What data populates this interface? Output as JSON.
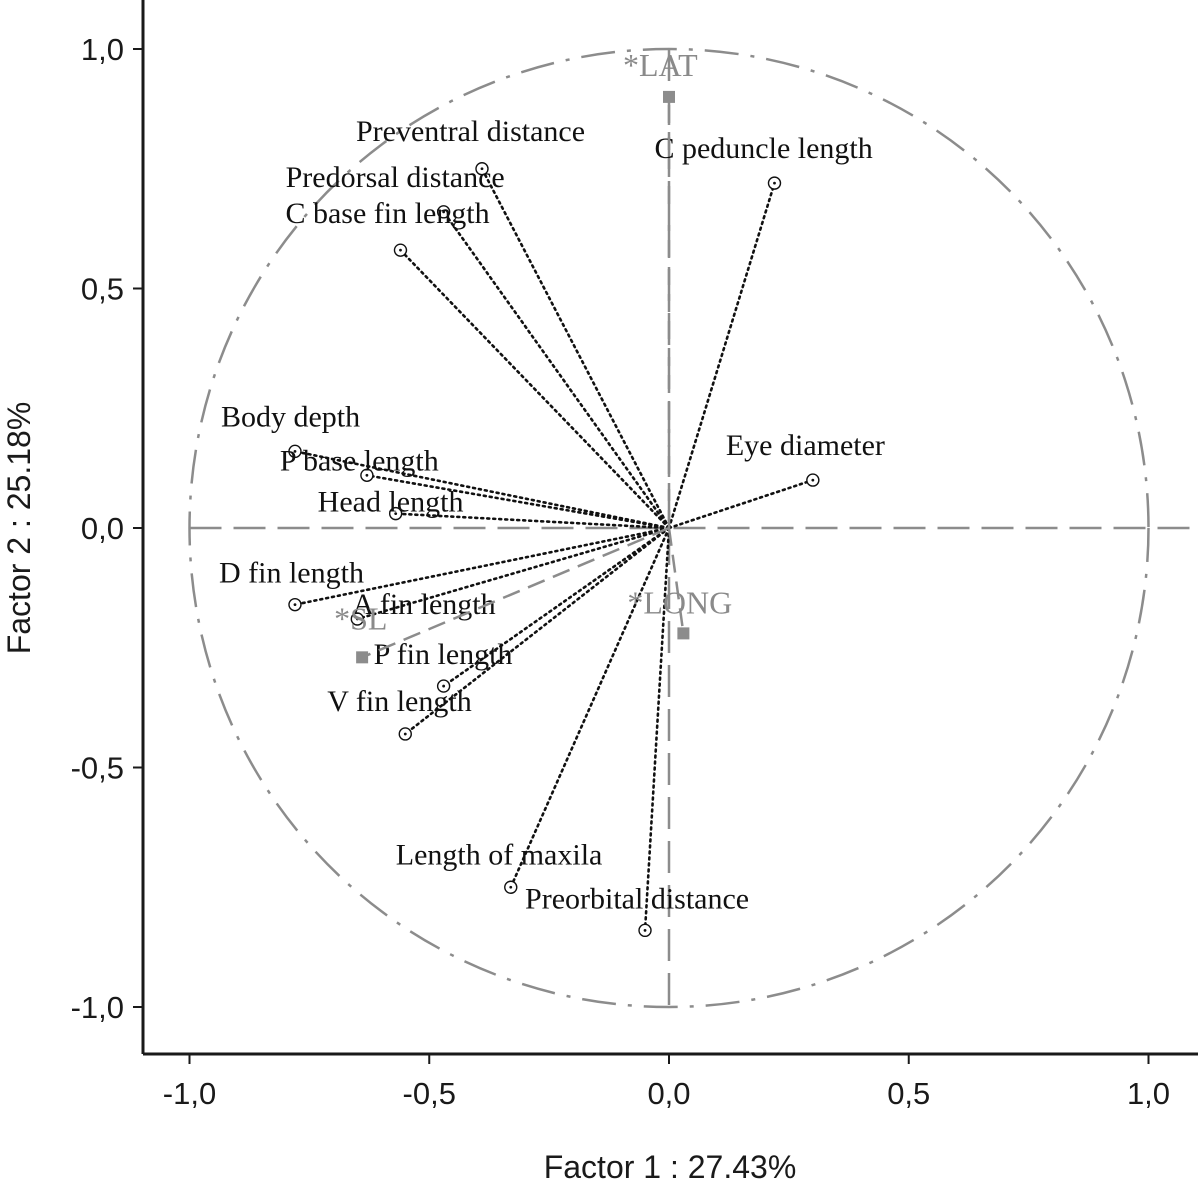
{
  "chart_data": {
    "type": "scatter",
    "subtype": "pca-correlation-circle",
    "xlabel": "Factor 1 : 27.43%",
    "ylabel": "Factor 2 : 25.18%",
    "xlim": [
      -1.1,
      1.1
    ],
    "ylim": [
      -1.1,
      1.1
    ],
    "xticks": [
      {
        "value": -1.0,
        "label": "-1,0"
      },
      {
        "value": -0.5,
        "label": "-0,5"
      },
      {
        "value": 0.0,
        "label": "0,0"
      },
      {
        "value": 0.5,
        "label": "0,5"
      },
      {
        "value": 1.0,
        "label": "1,0"
      }
    ],
    "yticks": [
      {
        "value": 1.0,
        "label": "1,0"
      },
      {
        "value": 0.5,
        "label": "0,5"
      },
      {
        "value": 0.0,
        "label": "0,0"
      },
      {
        "value": -0.5,
        "label": "-0,5"
      },
      {
        "value": -1.0,
        "label": "-1,0"
      }
    ],
    "grid": false,
    "unit_circle": true,
    "variables": [
      {
        "name": "Preventral distance",
        "x": -0.39,
        "y": 0.75
      },
      {
        "name": "Predorsal distance",
        "x": -0.47,
        "y": 0.66
      },
      {
        "name": "C base fin length",
        "x": -0.56,
        "y": 0.58
      },
      {
        "name": "C peduncle length",
        "x": 0.22,
        "y": 0.72
      },
      {
        "name": "Eye diameter",
        "x": 0.3,
        "y": 0.1
      },
      {
        "name": "Body depth",
        "x": -0.78,
        "y": 0.16
      },
      {
        "name": "P base length",
        "x": -0.63,
        "y": 0.11
      },
      {
        "name": "Head length",
        "x": -0.57,
        "y": 0.03
      },
      {
        "name": "D fin length",
        "x": -0.78,
        "y": -0.16
      },
      {
        "name": "A fin length",
        "x": -0.65,
        "y": -0.19
      },
      {
        "name": "P fin length",
        "x": -0.47,
        "y": -0.33
      },
      {
        "name": "V fin length",
        "x": -0.55,
        "y": -0.43
      },
      {
        "name": "Length of maxila",
        "x": -0.33,
        "y": -0.75
      },
      {
        "name": "Preorbital distance",
        "x": -0.05,
        "y": -0.84
      }
    ],
    "supplementary": [
      {
        "name": "LAT",
        "x": 0.0,
        "y": 0.9
      },
      {
        "name": "LONG",
        "x": 0.03,
        "y": -0.22
      },
      {
        "name": "SL",
        "x": -0.64,
        "y": -0.27
      }
    ]
  }
}
